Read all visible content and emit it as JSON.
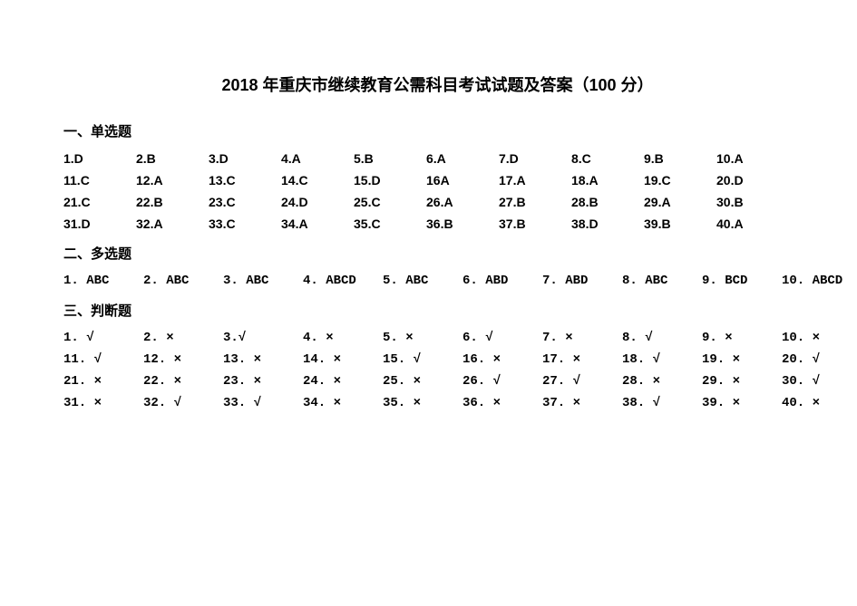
{
  "title": "2018 年重庆市继续教育公需科目考试试题及答案（100 分）",
  "sections": {
    "single": {
      "header": "一、单选题",
      "rows": [
        [
          "1.D",
          "2.B",
          "3.D",
          "4.A",
          "5.B",
          "6.A",
          "7.D",
          "8.C",
          "9.B",
          "10.A"
        ],
        [
          "11.C",
          "12.A",
          "13.C",
          "14.C",
          "15.D",
          "16A",
          "17.A",
          "18.A",
          "19.C",
          "20.D"
        ],
        [
          "21.C",
          "22.B",
          "23.C",
          "24.D",
          "25.C",
          "26.A",
          "27.B",
          "28.B",
          "29.A",
          "30.B"
        ],
        [
          "31.D",
          "32.A",
          "33.C",
          "34.A",
          "35.C",
          "36.B",
          "37.B",
          "38.D",
          "39.B",
          "40.A"
        ]
      ]
    },
    "multi": {
      "header": "二、多选题",
      "rows": [
        [
          "1. ABC",
          "2. ABC",
          "3. ABC",
          "4. ABCD",
          "5. ABC",
          "6. ABD",
          "7. ABD",
          "8. ABC",
          "9. BCD",
          "10. ABCD"
        ]
      ]
    },
    "judge": {
      "header": "三、判断题",
      "rows": [
        [
          "1. √",
          "2. ×",
          "3.√",
          "4. ×",
          "5. ×",
          "6. √",
          "7. ×",
          "8. √",
          "9. ×",
          "10. ×"
        ],
        [
          "11. √",
          "12. ×",
          "13. ×",
          "14. ×",
          "15. √",
          "16. ×",
          "17.  ×",
          "18. √",
          "19. ×",
          "20. √"
        ],
        [
          "21. ×",
          "22. ×",
          "23. ×",
          "24. ×",
          "25. ×",
          "26. √",
          "27. √",
          "28. ×",
          "29. ×",
          "30. √"
        ],
        [
          "31. ×",
          "32. √",
          "33. √",
          "34. ×",
          "35. ×",
          "36. ×",
          "37. ×",
          "38. √",
          "39. ×",
          "40. ×"
        ]
      ]
    }
  }
}
